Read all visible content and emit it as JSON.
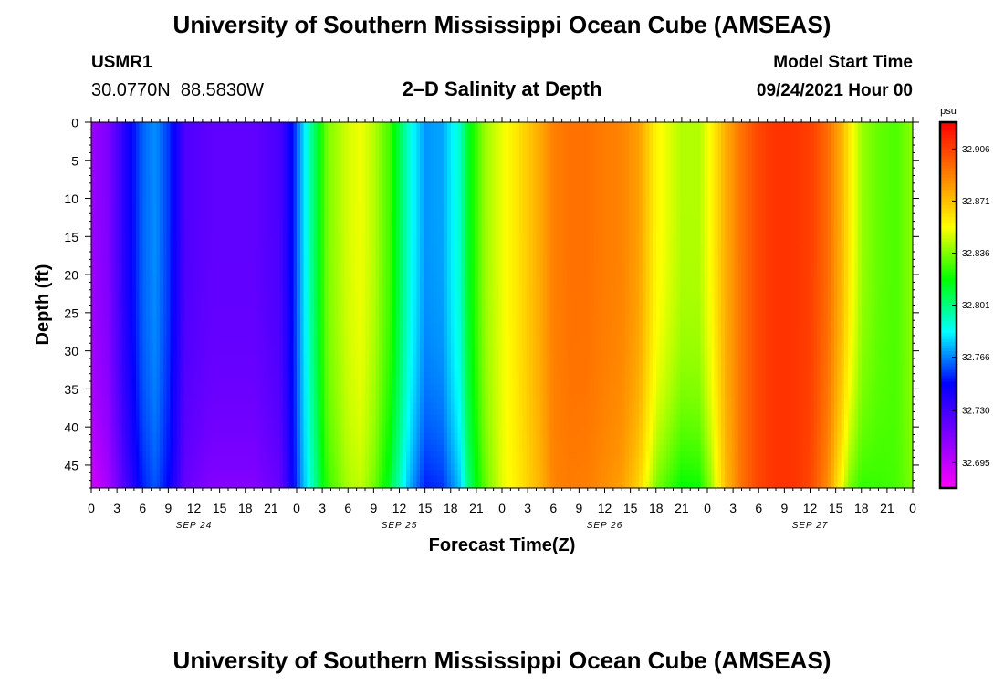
{
  "header": {
    "title": "University of Southern Mississippi Ocean Cube (AMSEAS)",
    "station_id": "USMR1",
    "station_coords": "30.0770N  88.5830W",
    "chart_title": "2–D Salinity at Depth",
    "model_start_label": "Model Start Time",
    "model_start_value": "09/24/2021 Hour 00"
  },
  "footer": {
    "title": "University of Southern Mississippi Ocean Cube (AMSEAS)"
  },
  "chart_data": {
    "type": "heatmap",
    "title": "2–D Salinity at Depth",
    "xlabel": "Forecast Time(Z)",
    "ylabel": "Depth (ft)",
    "x_unit": "hours from 09/24/2021 00Z",
    "xlim": [
      0,
      96
    ],
    "ylim": [
      0,
      48
    ],
    "y_reversed": true,
    "x_tick_labels": [
      "0",
      "3",
      "6",
      "9",
      "12",
      "15",
      "18",
      "21",
      "0",
      "3",
      "6",
      "9",
      "12",
      "15",
      "18",
      "21",
      "0",
      "3",
      "6",
      "9",
      "12",
      "15",
      "18",
      "21",
      "0",
      "3",
      "6",
      "9",
      "12",
      "15",
      "18",
      "21",
      "0"
    ],
    "y_tick_labels": [
      "0",
      "5",
      "10",
      "15",
      "20",
      "25",
      "30",
      "35",
      "40",
      "45"
    ],
    "date_labels": [
      "SEP 24",
      "SEP 25",
      "SEP 26",
      "SEP 27"
    ],
    "colorbar": {
      "unit": "psu",
      "min": 32.678,
      "max": 32.924,
      "tick_labels": [
        "32.906",
        "32.871",
        "32.836",
        "32.801",
        "32.766",
        "32.730",
        "32.695"
      ],
      "colors": [
        "#ff00ff",
        "#8000ff",
        "#0000ff",
        "#00ffff",
        "#00ff00",
        "#ffff00",
        "#ff8000",
        "#ff0000"
      ]
    },
    "surface_profile": {
      "time_h": [
        0,
        2,
        4,
        6,
        7.5,
        9,
        11,
        14,
        19,
        22,
        23.5,
        24.5,
        26,
        27.5,
        30,
        31.5,
        33,
        35,
        37,
        39,
        41,
        43,
        44,
        46,
        48,
        50,
        52.5,
        54,
        56,
        58,
        60,
        62,
        64,
        66,
        69,
        71,
        72.5,
        74,
        76,
        78,
        80,
        82,
        84,
        86,
        87.5,
        88.5,
        90,
        92,
        94,
        96
      ],
      "salinity": [
        32.705,
        32.714,
        32.74,
        32.762,
        32.768,
        32.756,
        32.727,
        32.722,
        32.722,
        32.728,
        32.75,
        32.772,
        32.803,
        32.835,
        32.848,
        32.852,
        32.844,
        32.826,
        32.79,
        32.769,
        32.771,
        32.79,
        32.813,
        32.84,
        32.851,
        32.862,
        32.878,
        32.889,
        32.893,
        32.893,
        32.89,
        32.888,
        32.88,
        32.856,
        32.843,
        32.843,
        32.856,
        32.875,
        32.893,
        32.905,
        32.91,
        32.91,
        32.907,
        32.895,
        32.877,
        32.861,
        32.84,
        32.832,
        32.829,
        32.838
      ]
    },
    "bottom_profile": {
      "depth_ft": 48,
      "time_h": [
        0,
        2,
        4,
        6,
        7.5,
        9,
        11,
        14,
        19,
        22,
        23.5,
        24.5,
        26,
        27.5,
        30,
        31.5,
        33,
        35,
        37,
        39,
        41,
        43,
        44,
        46,
        48,
        50,
        52.5,
        54,
        56,
        58,
        60,
        62,
        64,
        66,
        69,
        71,
        72.5,
        74,
        76,
        78,
        80,
        82,
        84,
        86,
        87.5,
        88.5,
        90,
        92,
        94,
        96
      ],
      "salinity": [
        32.69,
        32.703,
        32.728,
        32.752,
        32.76,
        32.748,
        32.72,
        32.712,
        32.712,
        32.72,
        32.745,
        32.768,
        32.795,
        32.825,
        32.842,
        32.845,
        32.835,
        32.81,
        32.775,
        32.752,
        32.755,
        32.775,
        32.8,
        32.832,
        32.85,
        32.86,
        32.875,
        32.888,
        32.89,
        32.889,
        32.885,
        32.88,
        32.865,
        32.835,
        32.818,
        32.82,
        32.84,
        32.87,
        32.893,
        32.905,
        32.91,
        32.91,
        32.905,
        32.886,
        32.856,
        32.836,
        32.825,
        32.826,
        32.828,
        32.836
      ]
    }
  }
}
